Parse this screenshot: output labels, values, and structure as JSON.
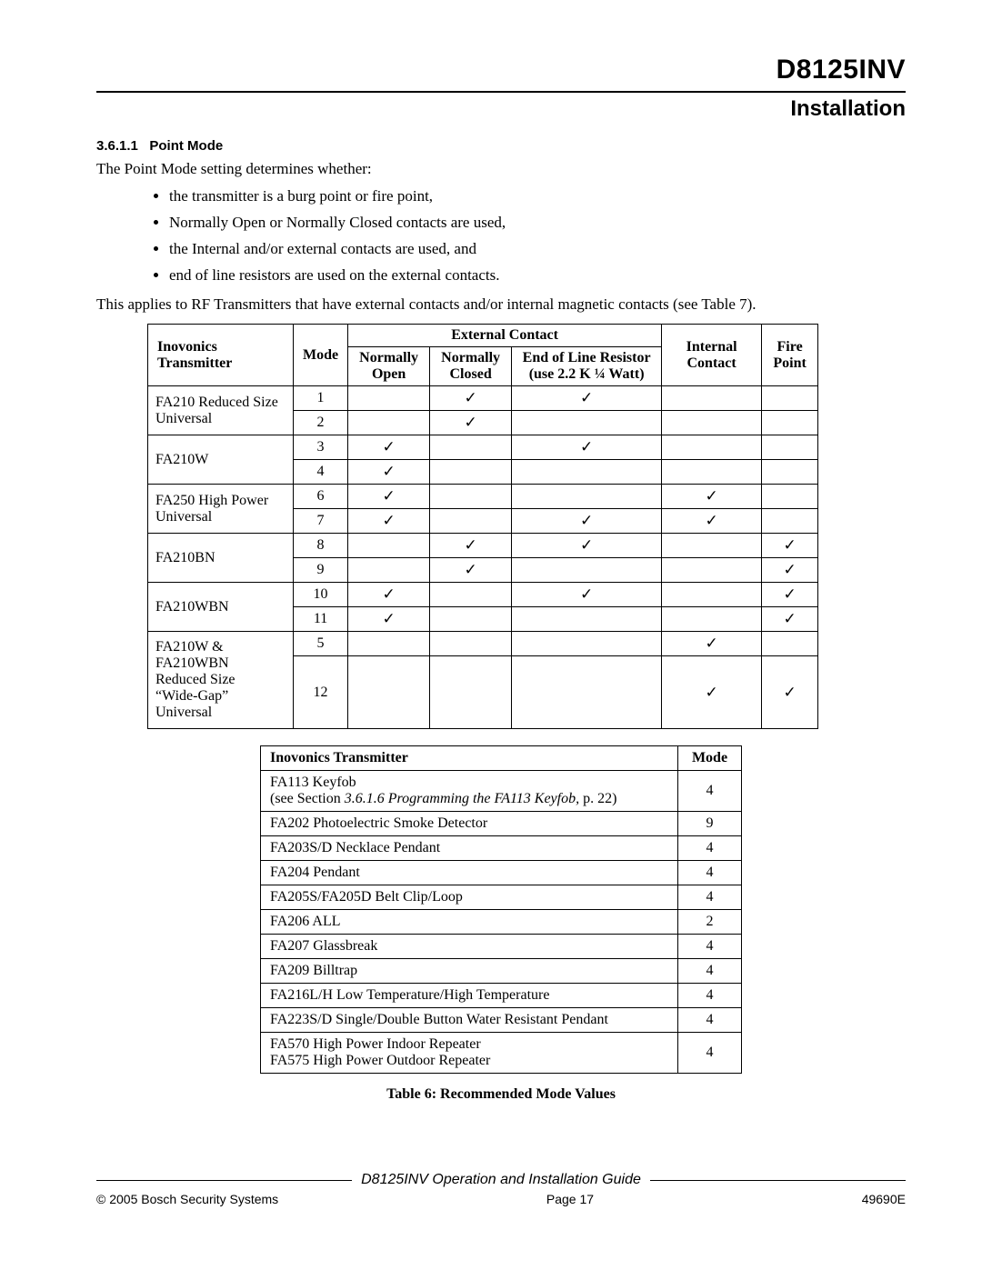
{
  "header": {
    "model": "D8125INV",
    "section": "Installation"
  },
  "subsection": {
    "number": "3.6.1.1",
    "title": "Point Mode"
  },
  "intro": "The Point Mode setting determines whether:",
  "bullets": [
    "the transmitter is a burg point or fire point,",
    "Normally Open or Normally Closed contacts are used,",
    "the Internal and/or external contacts are used, and",
    "end of line resistors are used on the external contacts."
  ],
  "applies": "This applies to RF Transmitters that have external contacts and/or internal magnetic contacts (see Table 7).",
  "table1": {
    "colors": {
      "border": "#000000",
      "check": "✓"
    },
    "headers": {
      "transmitter": "Inovonics Transmitter",
      "mode": "Mode",
      "external_group": "External Contact",
      "no": "Normally Open",
      "nc": "Normally Closed",
      "eol_l1": "End of Line Resistor",
      "eol_l2": "(use 2.2 K ¼ Watt)",
      "internal": "Internal Contact",
      "fire": "Fire Point"
    },
    "groups": [
      {
        "name": "FA210 Reduced Size Universal",
        "rows": [
          {
            "mode": "1",
            "no": false,
            "nc": true,
            "eol": true,
            "ic": false,
            "fp": false
          },
          {
            "mode": "2",
            "no": false,
            "nc": true,
            "eol": false,
            "ic": false,
            "fp": false
          }
        ]
      },
      {
        "name": "FA210W",
        "rows": [
          {
            "mode": "3",
            "no": true,
            "nc": false,
            "eol": true,
            "ic": false,
            "fp": false
          },
          {
            "mode": "4",
            "no": true,
            "nc": false,
            "eol": false,
            "ic": false,
            "fp": false
          }
        ]
      },
      {
        "name": "FA250 High Power Universal",
        "rows": [
          {
            "mode": "6",
            "no": true,
            "nc": false,
            "eol": false,
            "ic": true,
            "fp": false
          },
          {
            "mode": "7",
            "no": true,
            "nc": false,
            "eol": true,
            "ic": true,
            "fp": false
          }
        ]
      },
      {
        "name": "FA210BN",
        "rows": [
          {
            "mode": "8",
            "no": false,
            "nc": true,
            "eol": true,
            "ic": false,
            "fp": true
          },
          {
            "mode": "9",
            "no": false,
            "nc": true,
            "eol": false,
            "ic": false,
            "fp": true
          }
        ]
      },
      {
        "name": "FA210WBN",
        "rows": [
          {
            "mode": "10",
            "no": true,
            "nc": false,
            "eol": true,
            "ic": false,
            "fp": true
          },
          {
            "mode": "11",
            "no": true,
            "nc": false,
            "eol": false,
            "ic": false,
            "fp": true
          }
        ]
      },
      {
        "name": "FA210W & FA210WBN Reduced Size \"Wide-Gap\" Universal",
        "rows": [
          {
            "mode": "5",
            "no": false,
            "nc": false,
            "eol": false,
            "ic": true,
            "fp": false
          },
          {
            "mode": "12",
            "no": false,
            "nc": false,
            "eol": false,
            "ic": true,
            "fp": true
          }
        ]
      }
    ]
  },
  "table2": {
    "headers": {
      "transmitter": "Inovonics Transmitter",
      "mode": "Mode"
    },
    "rows": [
      {
        "name_html": "FA113 Keyfob<br>(see Section <i>3.6.1.6 Programming the FA113 Keyfob,</i> p. 22)",
        "mode": "4"
      },
      {
        "name_html": "FA202 Photoelectric Smoke Detector",
        "mode": "9"
      },
      {
        "name_html": "FA203S/D Necklace Pendant",
        "mode": "4"
      },
      {
        "name_html": "FA204 Pendant",
        "mode": "4"
      },
      {
        "name_html": "FA205S/FA205D Belt Clip/Loop",
        "mode": "4"
      },
      {
        "name_html": "FA206  ALL",
        "mode": "2"
      },
      {
        "name_html": "FA207 Glassbreak",
        "mode": "4"
      },
      {
        "name_html": "FA209 Billtrap",
        "mode": "4"
      },
      {
        "name_html": "FA216L/H Low Temperature/High Temperature",
        "mode": "4"
      },
      {
        "name_html": "FA223S/D Single/Double Button Water Resistant Pendant",
        "mode": "4"
      },
      {
        "name_html": "FA570 High Power Indoor Repeater<br>FA575 High Power Outdoor Repeater",
        "mode": "4"
      }
    ],
    "caption": "Table 6: Recommended Mode Values"
  },
  "footer": {
    "guide": "D8125INV Operation and Installation Guide",
    "copyright": "© 2005 Bosch Security Systems",
    "page": "Page 17",
    "docnum": "49690E"
  }
}
